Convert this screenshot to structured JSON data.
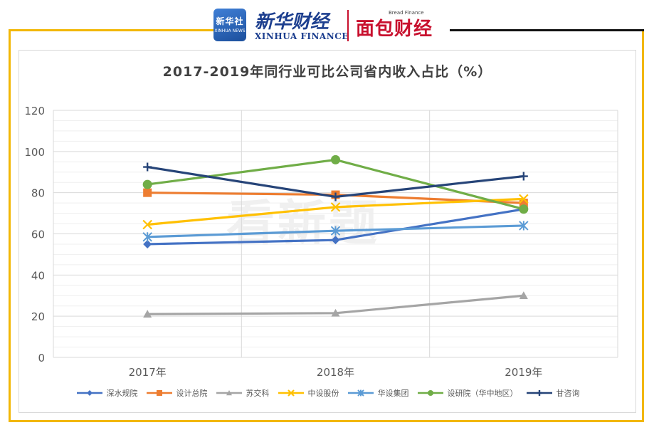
{
  "brand": {
    "xinhua_box_cn": "新华社",
    "xinhua_box_en": "XINHUA NEWS",
    "xinhua_cn": "新华财经",
    "xinhua_en": "XINHUA FINANCE",
    "mianbao_cn": "面包财经",
    "mianbao_en": "Bread Finance",
    "accent_color": "#f2b705"
  },
  "watermark": "看新题",
  "chart_data": {
    "type": "line",
    "title": "2017-2019年同行业可比公司省内收入占比（%）",
    "categories": [
      "2017年",
      "2018年",
      "2019年"
    ],
    "ylim": [
      0,
      120
    ],
    "yticks": [
      0,
      20,
      40,
      60,
      80,
      100,
      120
    ],
    "grid": true,
    "legend_position": "bottom",
    "series": [
      {
        "name": "深水规院",
        "values": [
          55,
          57,
          72
        ],
        "color": "#4472c4",
        "marker": "diamond"
      },
      {
        "name": "设计总院",
        "values": [
          80,
          79,
          75
        ],
        "color": "#ed7d31",
        "marker": "square"
      },
      {
        "name": "苏交科",
        "values": [
          21,
          21.5,
          30
        ],
        "color": "#a5a5a5",
        "marker": "triangle"
      },
      {
        "name": "中设股份",
        "values": [
          64.5,
          73,
          77
        ],
        "color": "#ffc000",
        "marker": "x"
      },
      {
        "name": "华设集团",
        "values": [
          58.5,
          61.5,
          64
        ],
        "color": "#5b9bd5",
        "marker": "asterisk"
      },
      {
        "name": "设研院（华中地区）",
        "values": [
          84,
          96,
          72
        ],
        "color": "#70ad47",
        "marker": "circle"
      },
      {
        "name": "甘咨询",
        "values": [
          92.5,
          78,
          88
        ],
        "color": "#264478",
        "marker": "plus"
      }
    ]
  }
}
